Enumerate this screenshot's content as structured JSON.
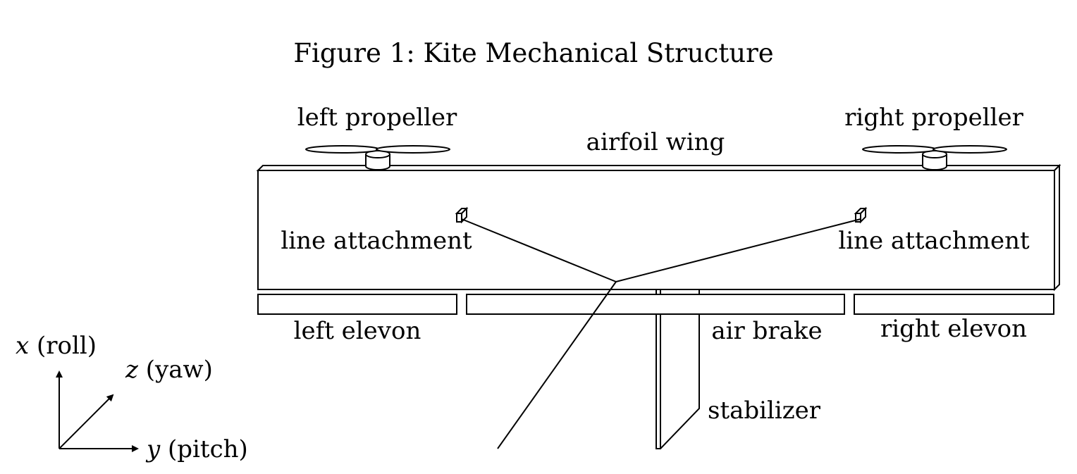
{
  "caption": "Figure 1: Kite Mechanical Structure",
  "labels": {
    "left_propeller": "left propeller",
    "right_propeller": "right propeller",
    "airfoil_wing": "airfoil wing",
    "line_attachment_left": "line attachment",
    "line_attachment_right": "line attachment",
    "left_elevon": "left elevon",
    "air_brake": "air brake",
    "right_elevon": "right elevon",
    "stabilizer": "stabilizer"
  },
  "axes": {
    "x_symbol": "x",
    "x_text": " (roll)",
    "z_symbol": "z",
    "z_text": " (yaw)",
    "y_symbol": "y",
    "y_text": " (pitch)"
  }
}
